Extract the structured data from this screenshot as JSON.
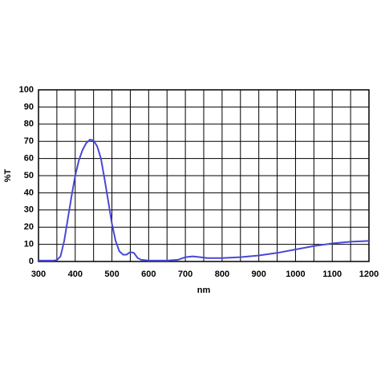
{
  "chart_data": {
    "type": "line",
    "x_label": "nm",
    "y_label": "%T",
    "x": [
      300,
      320,
      340,
      350,
      360,
      370,
      380,
      390,
      400,
      410,
      420,
      430,
      440,
      450,
      460,
      470,
      480,
      490,
      500,
      510,
      520,
      530,
      540,
      550,
      560,
      570,
      580,
      600,
      650,
      680,
      700,
      720,
      740,
      760,
      800,
      850,
      900,
      950,
      1000,
      1050,
      1100,
      1150,
      1200
    ],
    "series": [
      {
        "name": "%T",
        "color": "#4848d8",
        "values": [
          0.5,
          0.5,
          0.5,
          0.8,
          3,
          12,
          25,
          38,
          50,
          59,
          65,
          69,
          71,
          70.5,
          67,
          60,
          48,
          35,
          22,
          12,
          6,
          4,
          4,
          5.5,
          5,
          2,
          1,
          0.5,
          0.5,
          1,
          2.5,
          3,
          2.5,
          2,
          2,
          2.5,
          3.5,
          5,
          7,
          9,
          10.5,
          11.5,
          12
        ]
      }
    ],
    "xlim": [
      300,
      1200
    ],
    "ylim": [
      0,
      100
    ],
    "xticks": [
      300,
      400,
      500,
      600,
      700,
      800,
      900,
      1000,
      1100,
      1200
    ],
    "x_minor_ticks": [
      350,
      450,
      550,
      650,
      750,
      850,
      950,
      1050,
      1150
    ],
    "yticks": [
      0,
      10,
      20,
      30,
      40,
      50,
      60,
      70,
      80,
      90,
      100
    ],
    "grid": true
  }
}
